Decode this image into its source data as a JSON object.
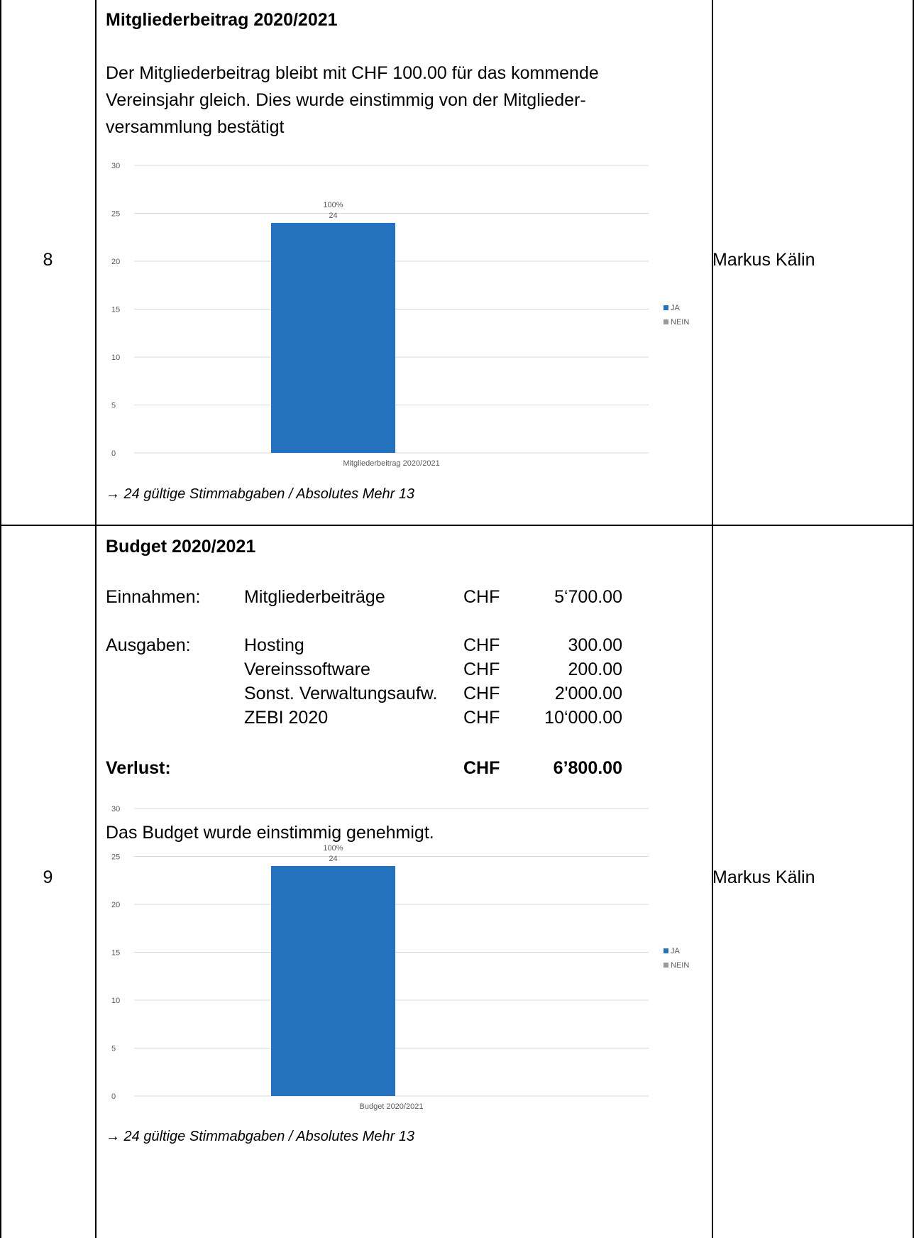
{
  "rows": [
    {
      "number": "8",
      "heading": "Mitgliederbeitrag 2020/2021",
      "text_lines": [
        "Der Mitgliederbeitrag bleibt mit CHF 100.00 für das kommende",
        "Vereinsjahr gleich. Dies wurde einstimmig von der Mitglieder-",
        "versammlung bestätigt"
      ],
      "note": "→ 24 gültige Stimmabgaben / Absolutes Mehr 13",
      "responsible": "Markus Kälin"
    },
    {
      "number": "9",
      "heading": "Budget 2020/2021",
      "budget": {
        "income_label": "Einnahmen:",
        "income_item": "Mitgliederbeiträge",
        "income_currency": "CHF",
        "income_amount": "5‘700.00",
        "expense_label": "Ausgaben:",
        "expenses": [
          {
            "item": "Hosting",
            "currency": "CHF",
            "amount": "300.00"
          },
          {
            "item": "Vereinssoftware",
            "currency": "CHF",
            "amount": "200.00"
          },
          {
            "item": "Sonst. Verwaltungsaufw.",
            "currency": "CHF",
            "amount": "2'000.00"
          },
          {
            "item": "ZEBI 2020",
            "currency": "CHF",
            "amount": "10‘000.00"
          }
        ],
        "loss_label": "Verlust:",
        "loss_currency": "CHF",
        "loss_amount": "6’800.00"
      },
      "text": "Das Budget wurde einstimmig genehmigt.",
      "note": "→ 24 gültige Stimmabgaben / Absolutes Mehr 13",
      "responsible": "Markus Kälin"
    }
  ],
  "chart_data": [
    {
      "type": "bar",
      "categories": [
        "Mitgliederbeitrag 2020/2021"
      ],
      "series": [
        {
          "name": "JA",
          "values": [
            24
          ],
          "color": "#2471be"
        },
        {
          "name": "NEIN",
          "values": [
            0
          ],
          "color": "#9a9a9a"
        }
      ],
      "data_labels": [
        {
          "percent": "100%",
          "value": "24"
        }
      ],
      "yticks": [
        "0",
        "5",
        "10",
        "15",
        "20",
        "25",
        "30"
      ],
      "ylim": [
        0,
        30
      ],
      "grid": true,
      "legend": "right"
    },
    {
      "type": "bar",
      "categories": [
        "Budget 2020/2021"
      ],
      "series": [
        {
          "name": "JA",
          "values": [
            24
          ],
          "color": "#2471be"
        },
        {
          "name": "NEIN",
          "values": [
            0
          ],
          "color": "#9a9a9a"
        }
      ],
      "data_labels": [
        {
          "percent": "100%",
          "value": "24"
        }
      ],
      "yticks": [
        "0",
        "5",
        "10",
        "15",
        "20",
        "25",
        "30"
      ],
      "ylim": [
        0,
        30
      ],
      "grid": true,
      "legend": "right"
    }
  ]
}
